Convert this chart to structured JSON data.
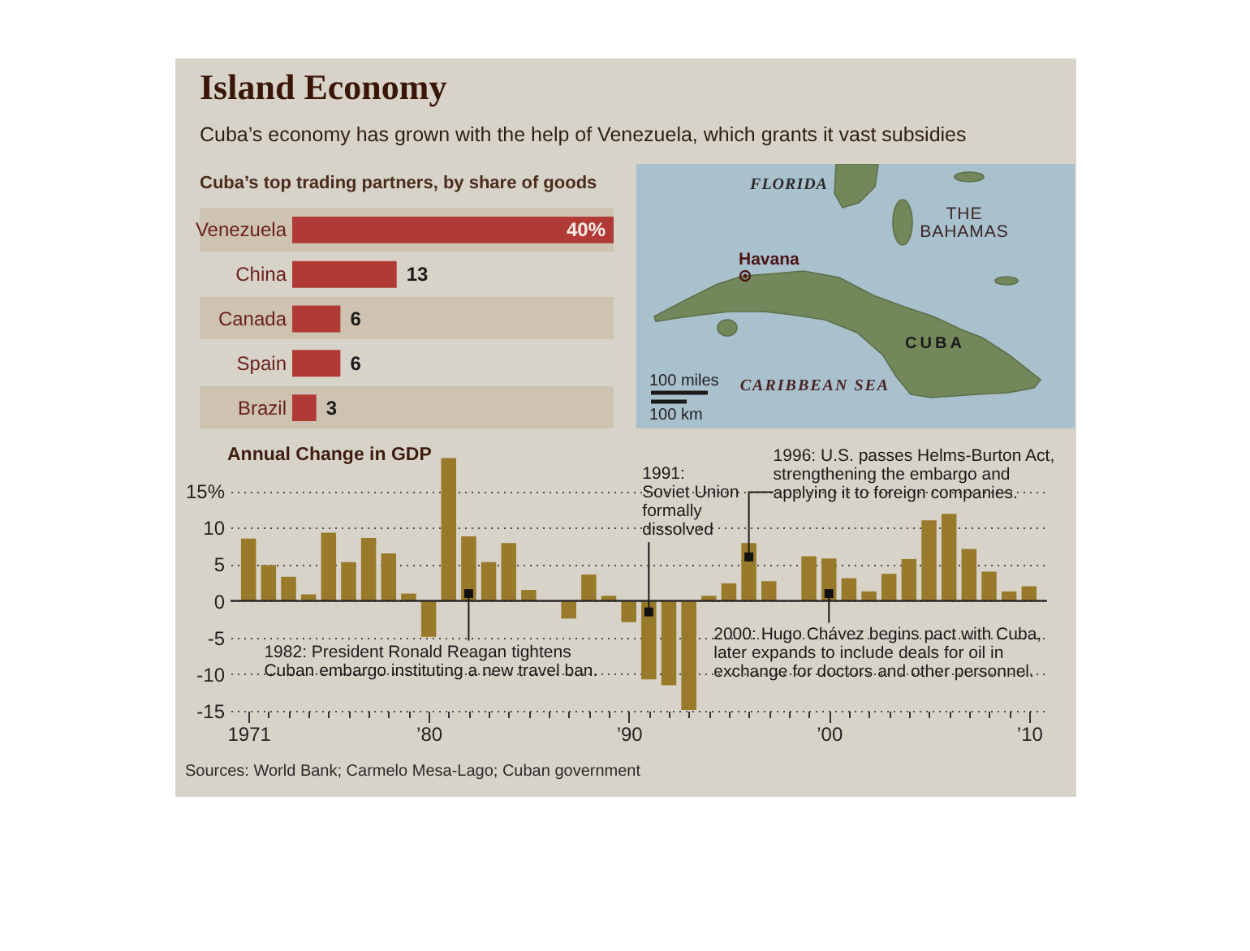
{
  "chart_data": [
    {
      "type": "other",
      "title": "Island Economy",
      "subtitle": "Cuba’s economy has grown with the help of Venezuela, which grants it vast subsidies"
    },
    {
      "type": "bar",
      "orientation": "horizontal",
      "title": "Cuba’s top trading partners, by share of goods",
      "categories": [
        "Venezuela",
        "China",
        "Canada",
        "Spain",
        "Brazil"
      ],
      "values": [
        40,
        13,
        6,
        6,
        3
      ],
      "value_labels": [
        "40%",
        "13",
        "6",
        "6",
        "3"
      ],
      "color": "#b23a36"
    },
    {
      "type": "other",
      "annotations": [
        "FLORIDA",
        "THE BAHAMAS",
        "Havana",
        "CUBA",
        "CARIBBEAN SEA",
        "100 miles",
        "100 km"
      ]
    },
    {
      "type": "bar",
      "title": "Annual Change in GDP",
      "x": [
        1971,
        1972,
        1973,
        1974,
        1975,
        1976,
        1977,
        1978,
        1979,
        1980,
        1981,
        1982,
        1983,
        1984,
        1985,
        1986,
        1987,
        1988,
        1989,
        1990,
        1991,
        1992,
        1993,
        1994,
        1995,
        1996,
        1997,
        1998,
        1999,
        2000,
        2001,
        2002,
        2003,
        2004,
        2005,
        2006,
        2007,
        2008,
        2009,
        2010
      ],
      "values": [
        8.5,
        4.9,
        3.3,
        0.9,
        9.3,
        5.3,
        8.6,
        6.5,
        1.0,
        -4.9,
        19.5,
        8.8,
        5.3,
        7.9,
        1.5,
        null,
        -2.4,
        3.6,
        0.7,
        -2.9,
        -10.7,
        -11.5,
        -14.9,
        0.7,
        2.4,
        7.9,
        2.7,
        null,
        6.1,
        5.8,
        3.1,
        1.3,
        3.7,
        5.7,
        11.0,
        11.9,
        7.1,
        4.0,
        1.3,
        2.0
      ],
      "color": "#987a2a",
      "xlim": [
        1970.1,
        2010.9
      ],
      "xticks": [
        {
          "value": 1971,
          "label": "1971"
        },
        {
          "value": 1972,
          "label": null
        },
        {
          "value": 1973,
          "label": null
        },
        {
          "value": 1974,
          "label": null
        },
        {
          "value": 1975,
          "label": null
        },
        {
          "value": 1976,
          "label": null
        },
        {
          "value": 1977,
          "label": null
        },
        {
          "value": 1978,
          "label": null
        },
        {
          "value": 1979,
          "label": null
        },
        {
          "value": 1980,
          "label": "’80"
        },
        {
          "value": 1981,
          "label": null
        },
        {
          "value": 1982,
          "label": null
        },
        {
          "value": 1983,
          "label": null
        },
        {
          "value": 1984,
          "label": null
        },
        {
          "value": 1985,
          "label": null
        },
        {
          "value": 1986,
          "label": null
        },
        {
          "value": 1987,
          "label": null
        },
        {
          "value": 1988,
          "label": null
        },
        {
          "value": 1989,
          "label": null
        },
        {
          "value": 1990,
          "label": "’90"
        },
        {
          "value": 1991,
          "label": null
        },
        {
          "value": 1992,
          "label": null
        },
        {
          "value": 1993,
          "label": null
        },
        {
          "value": 1994,
          "label": null
        },
        {
          "value": 1995,
          "label": null
        },
        {
          "value": 1996,
          "label": null
        },
        {
          "value": 1997,
          "label": null
        },
        {
          "value": 1998,
          "label": null
        },
        {
          "value": 1999,
          "label": null
        },
        {
          "value": 2000,
          "label": "’00"
        },
        {
          "value": 2001,
          "label": null
        },
        {
          "value": 2002,
          "label": null
        },
        {
          "value": 2003,
          "label": null
        },
        {
          "value": 2004,
          "label": null
        },
        {
          "value": 2005,
          "label": null
        },
        {
          "value": 2006,
          "label": null
        },
        {
          "value": 2007,
          "label": null
        },
        {
          "value": 2008,
          "label": null
        },
        {
          "value": 2009,
          "label": null
        },
        {
          "value": 2010,
          "label": "’10"
        }
      ],
      "ylim": [
        -15,
        20
      ],
      "yticks": [
        -15,
        -10,
        -5,
        0,
        5,
        10,
        {
          "value": 15,
          "label": "15%"
        }
      ],
      "grid": "y",
      "ref_lines": [
        {
          "axis": "y",
          "value": 0,
          "color": "#2b2b2b",
          "line_style": "solid"
        }
      ],
      "annotations": [
        {
          "text": "1982: President Ronald Reagan tightens\nCuban embargo instituting a new travel ban.",
          "x": 1982,
          "y": 1.0
        },
        {
          "text": "1991:\nSoviet Union\nformally\ndissolved",
          "x": 1991,
          "y": -1.5
        },
        {
          "text": "1996: U.S. passes Helms-Burton Act,\nstrengthening the embargo and\napplying it to foreign companies.",
          "x": 1996,
          "y": 6.0
        },
        {
          "text": "2000: Hugo Chávez begins pact with Cuba,\nlater expands to include deals for oil in\nexchange for doctors and other personnel.",
          "x": 2000,
          "y": 1.0
        },
        "Sources: World Bank; Carmelo Mesa-Lago; Cuban government"
      ]
    }
  ]
}
